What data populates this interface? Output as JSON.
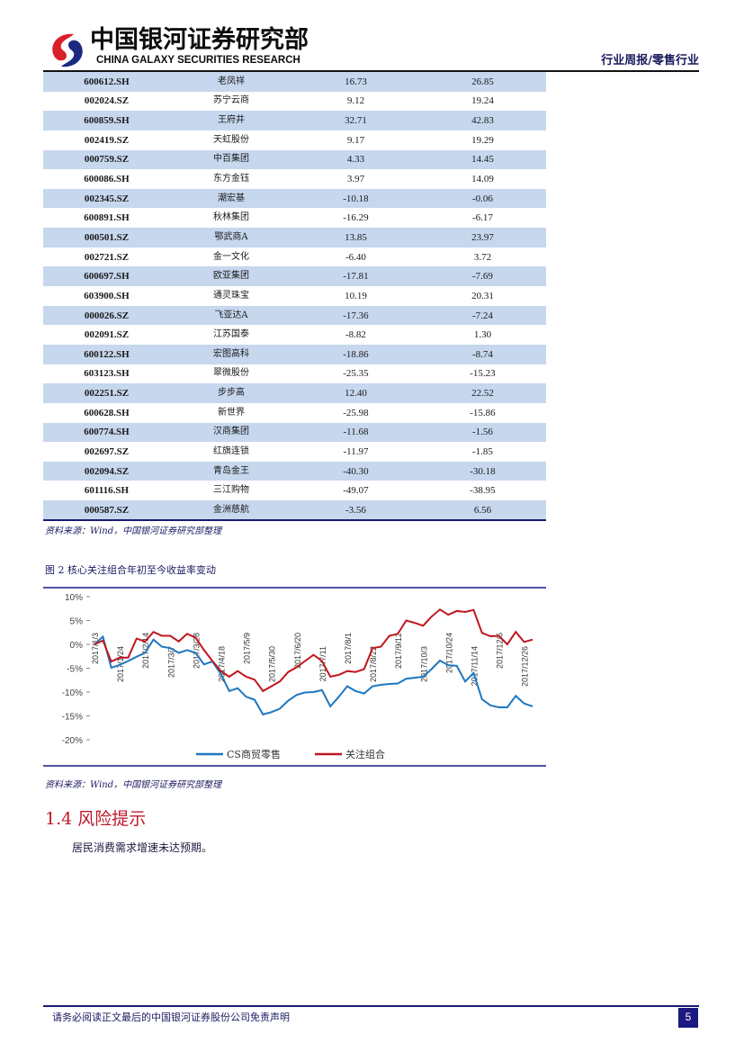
{
  "header": {
    "logo_cn": "中国银河证券研究部",
    "logo_en": "CHINA GALAXY SECURITIES RESEARCH",
    "report_type": "行业周报/零售行业"
  },
  "table": {
    "rows": [
      [
        "600612.SH",
        "老凤祥",
        "16.73",
        "26.85"
      ],
      [
        "002024.SZ",
        "苏宁云商",
        "9.12",
        "19.24"
      ],
      [
        "600859.SH",
        "王府井",
        "32.71",
        "42.83"
      ],
      [
        "002419.SZ",
        "天虹股份",
        "9.17",
        "19.29"
      ],
      [
        "000759.SZ",
        "中百集团",
        "4.33",
        "14.45"
      ],
      [
        "600086.SH",
        "东方金钰",
        "3.97",
        "14.09"
      ],
      [
        "002345.SZ",
        "潮宏基",
        "-10.18",
        "-0.06"
      ],
      [
        "600891.SH",
        "秋林集团",
        "-16.29",
        "-6.17"
      ],
      [
        "000501.SZ",
        "鄂武商A",
        "13.85",
        "23.97"
      ],
      [
        "002721.SZ",
        "金一文化",
        "-6.40",
        "3.72"
      ],
      [
        "600697.SH",
        "欧亚集团",
        "-17.81",
        "-7.69"
      ],
      [
        "603900.SH",
        "通灵珠宝",
        "10.19",
        "20.31"
      ],
      [
        "000026.SZ",
        "飞亚达A",
        "-17.36",
        "-7.24"
      ],
      [
        "002091.SZ",
        "江苏国泰",
        "-8.82",
        "1.30"
      ],
      [
        "600122.SH",
        "宏图高科",
        "-18.86",
        "-8.74"
      ],
      [
        "603123.SH",
        "翠微股份",
        "-25.35",
        "-15.23"
      ],
      [
        "002251.SZ",
        "步步高",
        "12.40",
        "22.52"
      ],
      [
        "600628.SH",
        "新世界",
        "-25.98",
        "-15.86"
      ],
      [
        "600774.SH",
        "汉商集团",
        "-11.68",
        "-1.56"
      ],
      [
        "002697.SZ",
        "红旗连锁",
        "-11.97",
        "-1.85"
      ],
      [
        "002094.SZ",
        "青岛金王",
        "-40.30",
        "-30.18"
      ],
      [
        "601116.SH",
        "三江购物",
        "-49.07",
        "-38.95"
      ],
      [
        "000587.SZ",
        "金洲慈航",
        "-3.56",
        "6.56"
      ]
    ]
  },
  "table_source": "资料来源：Wind，中国银河证券研究部整理",
  "figure_title": "图 2 核心关注组合年初至今收益率变动",
  "chart_data": {
    "type": "line",
    "title": "核心关注组合年初至今收益率变动",
    "ylim": [
      -20,
      10
    ],
    "yticks": [
      "10%",
      "5%",
      "0%",
      "-5%",
      "-10%",
      "-15%",
      "-20%"
    ],
    "ytick_values": [
      10,
      5,
      0,
      -5,
      -10,
      -15,
      -20
    ],
    "xtick_labels": [
      "2017/1/3",
      "2017/1/24",
      "2017/2/14",
      "2017/3/7",
      "2017/3/28",
      "2017/4/18",
      "2017/5/9",
      "2017/5/30",
      "2017/6/20",
      "2017/7/11",
      "2017/8/1",
      "2017/8/22",
      "2017/9/12",
      "2017/10/3",
      "2017/10/24",
      "2017/11/14",
      "2017/12/5",
      "2017/12/26"
    ],
    "legend_position": "bottom",
    "series": [
      {
        "name": "CS商贸零售",
        "color": "#1f77c0",
        "values": [
          0,
          1.6,
          -4.9,
          -4.3,
          -3.5,
          -2.6,
          -1.8,
          1,
          -0.5,
          -0.8,
          -1.8,
          -1.2,
          -1.8,
          -4.2,
          -3.6,
          -6.2,
          -9.8,
          -9.2,
          -11,
          -11.6,
          -14.7,
          -14.2,
          -13.5,
          -11.8,
          -10.6,
          -10.1,
          -10,
          -9.6,
          -13,
          -11,
          -8.8,
          -9.8,
          -10.3,
          -8.8,
          -8.5,
          -8.3,
          -8.2,
          -7.2,
          -7,
          -6.8,
          -5.2,
          -3.4,
          -4.4,
          -4.5,
          -7.8,
          -6,
          -11.5,
          -12.8,
          -13.2,
          -13.2,
          -10.8,
          -12.4,
          -13
        ]
      },
      {
        "name": "关注组合",
        "color": "#c0161f",
        "values": [
          0,
          0.8,
          -3.6,
          -2.8,
          -2.8,
          1.2,
          0.6,
          2.6,
          1.8,
          1.8,
          0.6,
          2.2,
          1.4,
          -1.2,
          -3.5,
          -5.6,
          -6.8,
          -5.6,
          -6.8,
          -7.4,
          -9.8,
          -8.8,
          -7.8,
          -5.8,
          -4.8,
          -3.5,
          -2.2,
          -3.5,
          -6.8,
          -6.4,
          -5.6,
          -5.8,
          -5.2,
          -0.8,
          -0.5,
          1.8,
          2.2,
          5,
          4.5,
          3.9,
          5.8,
          7.3,
          6.2,
          7,
          6.8,
          7.2,
          2.4,
          1.7,
          1.8,
          0,
          2.6,
          0.5,
          1
        ]
      }
    ]
  },
  "chart_source": "资料来源：Wind，中国银河证券研究部整理",
  "section": {
    "title": "1.4  风险提示",
    "body": "居民消费需求增速未达预期。"
  },
  "footer": {
    "disclaimer": "请务必阅读正文最后的中国银河证券股份公司免责声明",
    "page": "5"
  }
}
